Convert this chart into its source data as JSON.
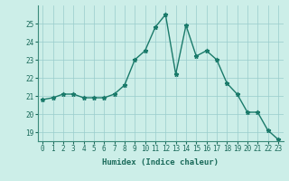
{
  "x": [
    0,
    1,
    2,
    3,
    4,
    5,
    6,
    7,
    8,
    9,
    10,
    11,
    12,
    13,
    14,
    15,
    16,
    17,
    18,
    19,
    20,
    21,
    22,
    23
  ],
  "y": [
    20.8,
    20.9,
    21.1,
    21.1,
    20.9,
    20.9,
    20.9,
    21.1,
    21.6,
    23.0,
    23.5,
    24.8,
    25.5,
    22.2,
    24.9,
    23.2,
    23.5,
    23.0,
    21.7,
    21.1,
    20.1,
    20.1,
    19.1,
    18.6
  ],
  "line_color": "#1a7a6a",
  "marker": "*",
  "marker_color": "#1a7a6a",
  "bg_color": "#cceee8",
  "grid_color": "#99cccc",
  "xlabel": "Humidex (Indice chaleur)",
  "ylim": [
    18.5,
    26.0
  ],
  "xlim": [
    -0.5,
    23.5
  ],
  "yticks": [
    19,
    20,
    21,
    22,
    23,
    24,
    25
  ],
  "xtick_labels": [
    "0",
    "1",
    "2",
    "3",
    "4",
    "5",
    "6",
    "7",
    "8",
    "9",
    "10",
    "11",
    "12",
    "13",
    "14",
    "15",
    "16",
    "17",
    "18",
    "19",
    "20",
    "21",
    "22",
    "23"
  ],
  "xlabel_fontsize": 6.5,
  "tick_fontsize": 5.5,
  "line_width": 1.0,
  "marker_size": 3.5
}
